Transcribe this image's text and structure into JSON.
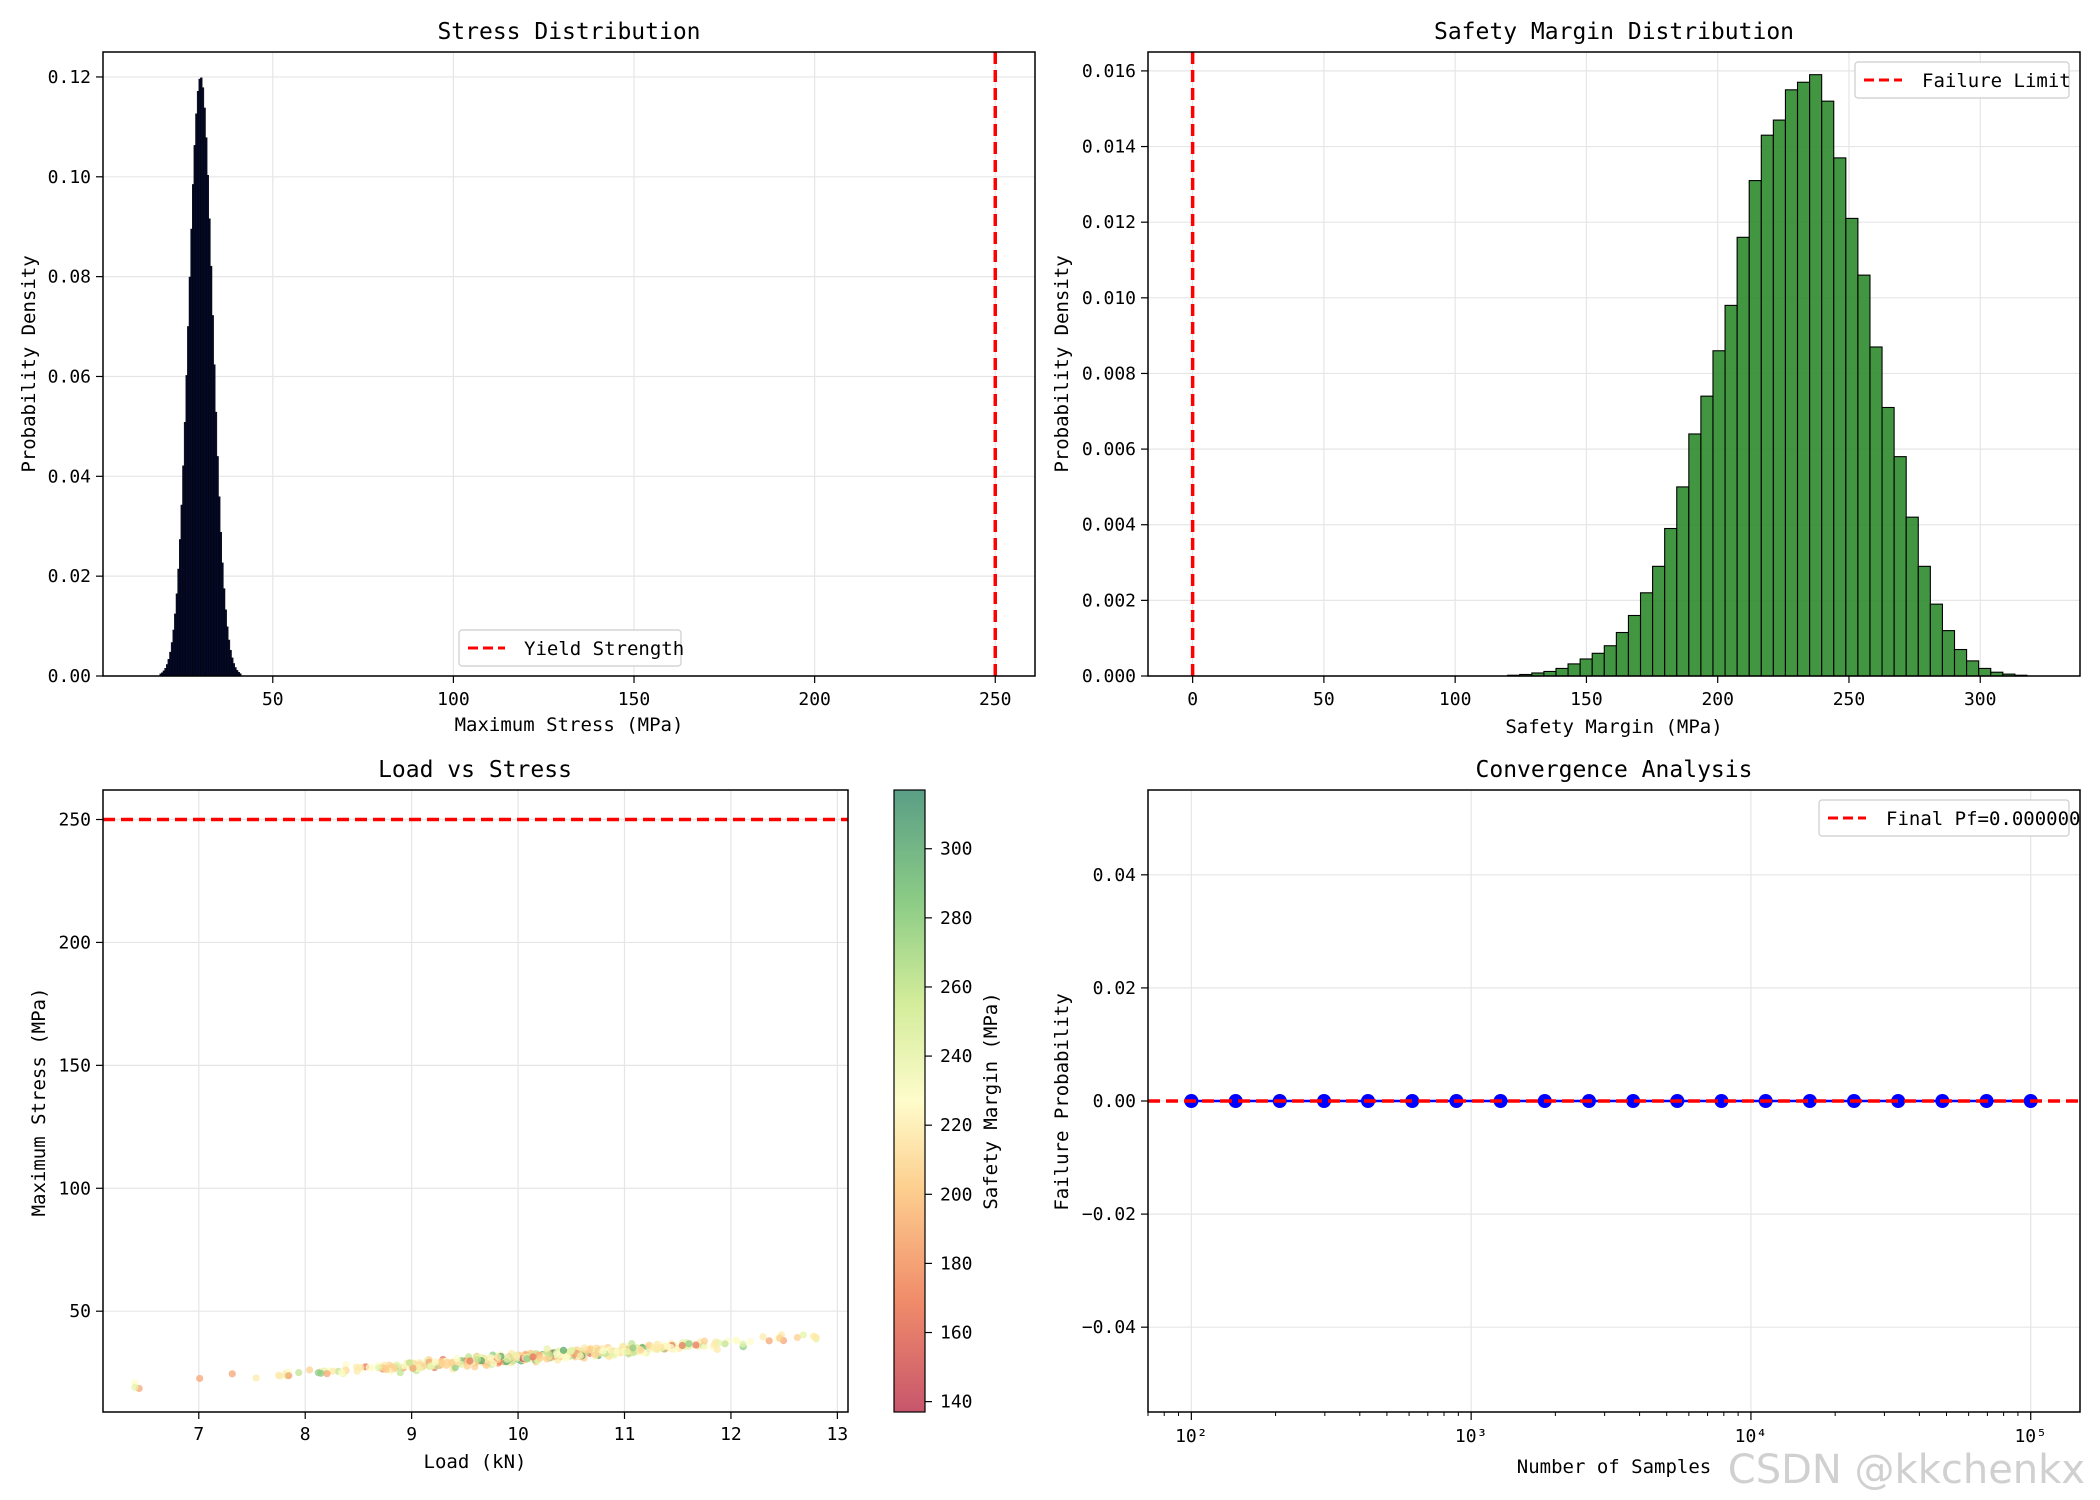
{
  "watermark": "CSDN @kkchenkx",
  "colors": {
    "stress_hist": "#050a2a",
    "margin_hist": "#2e8b2e",
    "limit_line": "#ff0000",
    "convergence_points": "#0000ff",
    "grid": "#e6e6e6"
  },
  "chart_data": [
    {
      "type": "bar",
      "title": "Stress Distribution",
      "xlabel": "Maximum Stress (MPa)",
      "ylabel": "Probability Density",
      "xlim": [
        3,
        261
      ],
      "ylim": [
        0,
        0.125
      ],
      "xticks": [
        "50",
        "100",
        "150",
        "200",
        "250"
      ],
      "yticks": [
        "0.00",
        "0.02",
        "0.04",
        "0.06",
        "0.08",
        "0.10",
        "0.12"
      ],
      "grid": true,
      "legend": {
        "position": "lower center",
        "entries": [
          "Yield Strength"
        ]
      },
      "reference_line": {
        "orientation": "vertical",
        "value": 250,
        "name": "Yield Strength",
        "style": "dashed"
      },
      "histogram": {
        "mean": 30,
        "std": 3.3,
        "peak": 0.12,
        "range": [
          16,
          44
        ]
      }
    },
    {
      "type": "bar",
      "title": "Safety Margin Distribution",
      "xlabel": "Safety Margin (MPa)",
      "ylabel": "Probability Density",
      "xlim": [
        -17,
        338
      ],
      "ylim": [
        0,
        0.0165
      ],
      "xticks": [
        "0",
        "50",
        "100",
        "150",
        "200",
        "250",
        "300"
      ],
      "yticks": [
        "0.000",
        "0.002",
        "0.004",
        "0.006",
        "0.008",
        "0.010",
        "0.012",
        "0.014",
        "0.016"
      ],
      "grid": true,
      "legend": {
        "position": "upper right",
        "entries": [
          "Failure Limit"
        ]
      },
      "reference_line": {
        "orientation": "vertical",
        "value": 0,
        "name": "Failure Limit",
        "style": "dashed"
      },
      "bins": {
        "start": 120,
        "width": 4.6,
        "values": [
          2e-05,
          4e-05,
          8e-05,
          0.00012,
          0.0002,
          0.00032,
          0.00045,
          0.0006,
          0.0008,
          0.00115,
          0.0016,
          0.0022,
          0.0029,
          0.0039,
          0.005,
          0.0064,
          0.0074,
          0.0086,
          0.0098,
          0.0116,
          0.0131,
          0.0143,
          0.0147,
          0.0155,
          0.0157,
          0.0159,
          0.0152,
          0.0137,
          0.0121,
          0.0106,
          0.0087,
          0.0071,
          0.0058,
          0.0042,
          0.0029,
          0.0019,
          0.0012,
          0.0007,
          0.0004,
          0.0002,
          0.0001,
          5e-05,
          2e-05
        ]
      }
    },
    {
      "type": "scatter",
      "title": "Load vs Stress",
      "xlabel": "Load (kN)",
      "ylabel": "Maximum Stress (MPa)",
      "xlim": [
        6.1,
        13.1
      ],
      "ylim": [
        9,
        262
      ],
      "xticks": [
        "7",
        "8",
        "9",
        "10",
        "11",
        "12",
        "13"
      ],
      "yticks": [
        "50",
        "100",
        "150",
        "200",
        "250"
      ],
      "grid": true,
      "reference_line": {
        "orientation": "horizontal",
        "value": 250,
        "style": "dashed"
      },
      "colorbar": {
        "label": "Safety Margin (MPa)",
        "range": [
          137,
          317
        ],
        "ticks": [
          "140",
          "160",
          "180",
          "200",
          "220",
          "240",
          "260",
          "280",
          "300"
        ],
        "colormap": "RdYlGn"
      },
      "points_summary": {
        "x_range": [
          6.4,
          12.8
        ],
        "y_range": [
          20,
          41
        ],
        "trend": "stress ≈ 3.1 × load"
      }
    },
    {
      "type": "line",
      "title": "Convergence Analysis",
      "xlabel": "Number of Samples",
      "ylabel": "Failure Probability",
      "xscale": "log",
      "xlim": [
        70,
        150000
      ],
      "ylim": [
        -0.055,
        0.055
      ],
      "xticks": [
        "10²",
        "10³",
        "10⁴",
        "10⁵"
      ],
      "yticks": [
        "−0.04",
        "−0.02",
        "0.00",
        "0.02",
        "0.04"
      ],
      "grid": true,
      "legend": {
        "position": "upper right",
        "entries": [
          "Final Pf=0.000000"
        ]
      },
      "reference_line": {
        "orientation": "horizontal",
        "value": 0,
        "name": "Final Pf=0.000000",
        "style": "dashed"
      },
      "series": [
        {
          "x": [
            100,
            144,
            207,
            298,
            428,
            616,
            886,
            1274,
            1833,
            2637,
            3793,
            5456,
            7848,
            11288,
            16238,
            23357,
            33598,
            48329,
            69519,
            100000
          ],
          "y": [
            0,
            0,
            0,
            0,
            0,
            0,
            0,
            0,
            0,
            0,
            0,
            0,
            0,
            0,
            0,
            0,
            0,
            0,
            0,
            0
          ]
        }
      ]
    }
  ]
}
